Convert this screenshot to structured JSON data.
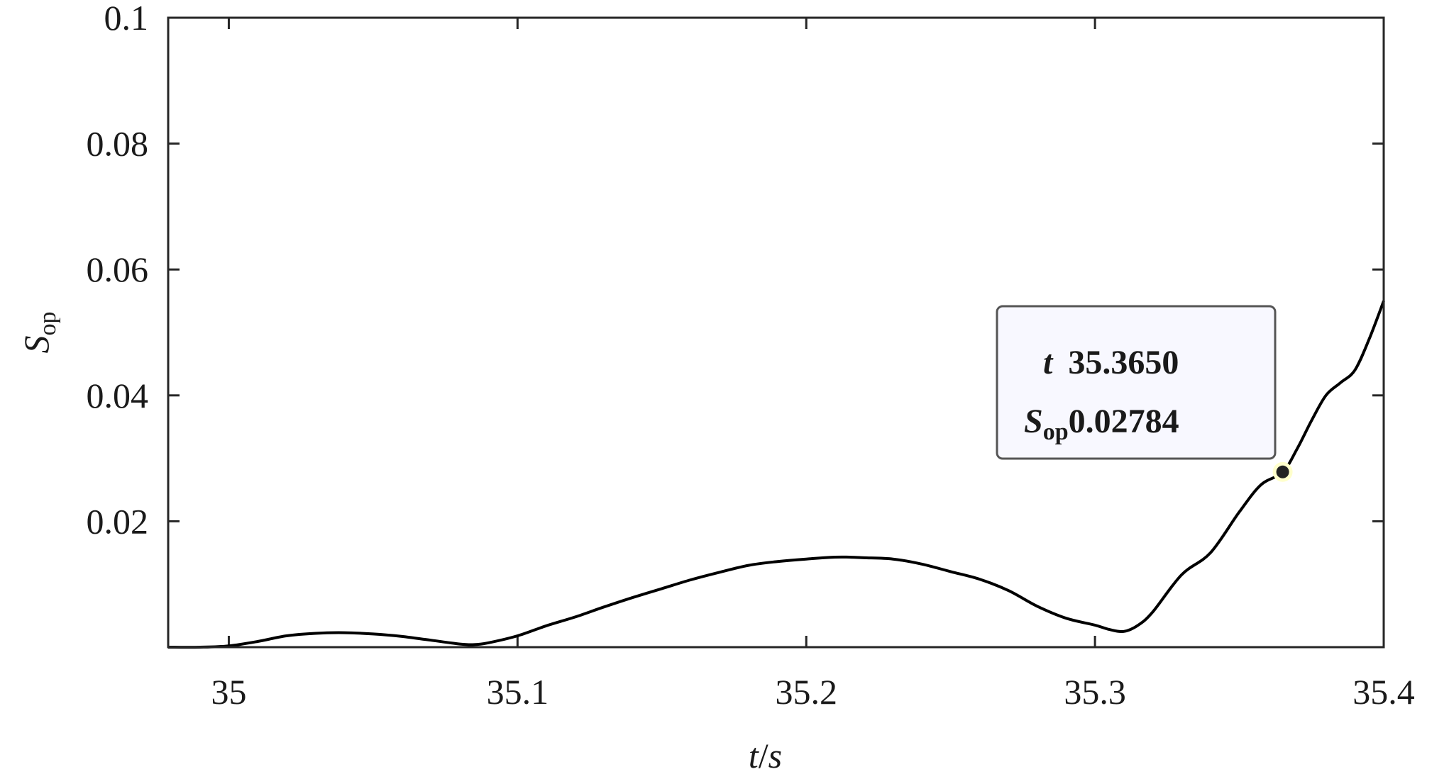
{
  "chart_data": {
    "type": "line",
    "title": "",
    "xlabel_parts": {
      "var": "t",
      "sep": "/",
      "unit": "s"
    },
    "ylabel_parts": {
      "main": "S",
      "sub": "op"
    },
    "xlim": [
      34.979,
      35.4
    ],
    "ylim": [
      0,
      0.1
    ],
    "xticks": [
      35,
      35.1,
      35.2,
      35.3,
      35.4
    ],
    "xtick_labels": [
      "35",
      "35.1",
      "35.2",
      "35.3",
      "35.4"
    ],
    "yticks": [
      0.02,
      0.04,
      0.06,
      0.08,
      0.1
    ],
    "ytick_labels": [
      "0.02",
      "0.04",
      "0.06",
      "0.08",
      "0.1"
    ],
    "grid": false,
    "line_color": "#000000",
    "series": [
      {
        "x": [
          34.979,
          34.99,
          35.0,
          35.01,
          35.02,
          35.03,
          35.04,
          35.05,
          35.06,
          35.07,
          35.08,
          35.085,
          35.09,
          35.1,
          35.11,
          35.12,
          35.13,
          35.14,
          35.15,
          35.16,
          35.17,
          35.18,
          35.19,
          35.2,
          35.21,
          35.215,
          35.22,
          35.23,
          35.24,
          35.25,
          35.26,
          35.27,
          35.28,
          35.29,
          35.3,
          35.305,
          35.31,
          35.315,
          35.32,
          35.33,
          35.34,
          35.35,
          35.3575,
          35.365,
          35.37,
          35.375,
          35.38,
          35.385,
          35.39,
          35.395,
          35.4
        ],
        "y": [
          0.0,
          0.0,
          0.0002,
          0.0009,
          0.0018,
          0.0022,
          0.0023,
          0.0021,
          0.0017,
          0.0011,
          0.0005,
          0.0004,
          0.0007,
          0.0018,
          0.0034,
          0.0048,
          0.0064,
          0.0079,
          0.0093,
          0.0107,
          0.0119,
          0.013,
          0.0136,
          0.014,
          0.0143,
          0.0143,
          0.0142,
          0.014,
          0.0132,
          0.012,
          0.0108,
          0.009,
          0.0065,
          0.0046,
          0.0035,
          0.0028,
          0.0025,
          0.0035,
          0.0056,
          0.0115,
          0.015,
          0.0215,
          0.0258,
          0.0278,
          0.0315,
          0.036,
          0.04,
          0.042,
          0.044,
          0.049,
          0.055
        ]
      }
    ],
    "datatip": {
      "x": 35.365,
      "y": 0.02784,
      "x_label": "t",
      "x_text": "35.3650",
      "y_label_main": "S",
      "y_label_sub": "op",
      "y_text": "0.02784",
      "box_fill": "#f8f8ff",
      "box_stroke": "#555555",
      "marker_fill": "#222222",
      "marker_halo": "#ffffcc"
    }
  }
}
